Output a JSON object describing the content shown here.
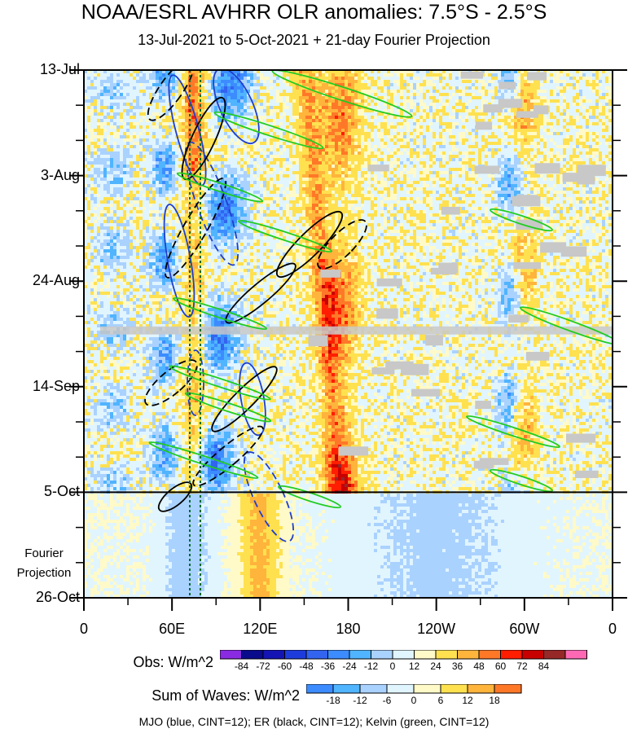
{
  "title": "NOAA/ESRL AVHRR OLR anomalies: 7.5°S - 2.5°S",
  "subtitle": "13-Jul-2021 to 5-Oct-2021 + 21-day Fourier Projection",
  "chart_data": {
    "type": "heatmap",
    "x_axis": {
      "ticks": [
        "0",
        "60E",
        "120E",
        "180",
        "120W",
        "60W",
        "0"
      ],
      "range_lon_east": [
        0,
        360
      ]
    },
    "y_axis": {
      "ticks": [
        "13-Jul",
        "3-Aug",
        "24-Aug",
        "14-Sep",
        "5-Oct",
        "26-Oct"
      ],
      "range": [
        "13-Jul-2021",
        "26-Oct-2021"
      ],
      "projection_start": "5-Oct",
      "projection_label": [
        "Fourier",
        "Projection"
      ]
    },
    "obs_colorbar": {
      "label": "Obs: W/m^2",
      "levels": [
        -84,
        -72,
        -60,
        -48,
        -36,
        -24,
        -12,
        0,
        12,
        24,
        36,
        48,
        60,
        72,
        84
      ],
      "colors": [
        "#8a2be2",
        "#0a0a8c",
        "#1414b4",
        "#1e3cdc",
        "#3264f0",
        "#3c8cff",
        "#50b4ff",
        "#aad2ff",
        "#e1f5ff",
        "#fffac8",
        "#ffe150",
        "#ffb43c",
        "#ff7828",
        "#ff1e00",
        "#c80000",
        "#962828",
        "#ff69b4"
      ]
    },
    "waves_colorbar": {
      "label": "Sum of Waves: W/m^2",
      "levels": [
        -18,
        -12,
        -6,
        0,
        6,
        12,
        18
      ],
      "colors": [
        "#3c8cff",
        "#50b4ff",
        "#aad2ff",
        "#e1f5ff",
        "#fffac8",
        "#ffe150",
        "#ffb43c",
        "#ff7828"
      ]
    },
    "contour_legend": "MJO (blue, CINT=12); ER (black, CINT=12); Kelvin (green, CINT=12)",
    "series_colors": {
      "MJO": "#1f3fcc",
      "ER": "#000000",
      "Kelvin": "#22cc22"
    }
  }
}
